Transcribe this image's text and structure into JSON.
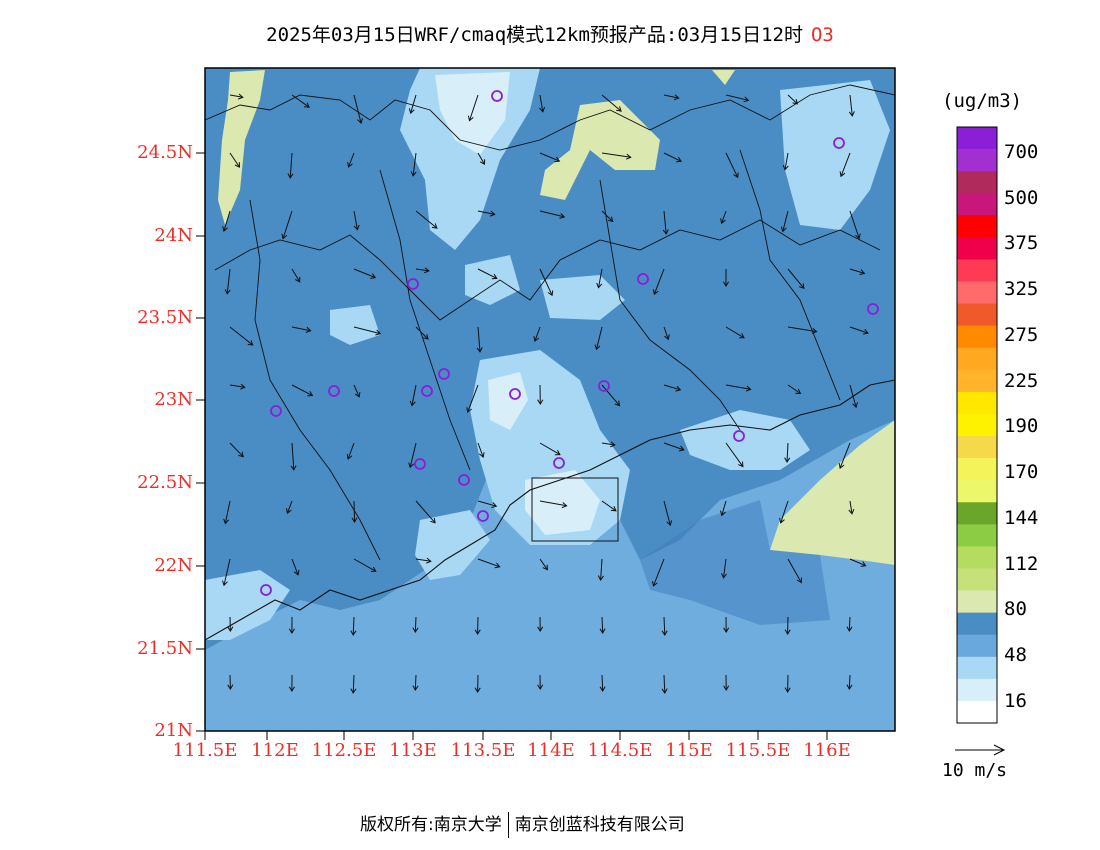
{
  "title": {
    "text": "2025年03月15日WRF/cmaq模式12km预报产品:03月15日12时",
    "species": "O3"
  },
  "lat_ticks": [
    "24.5N",
    "24N",
    "23.5N",
    "23N",
    "22.5N",
    "22N",
    "21.5N",
    "21N"
  ],
  "lon_ticks": [
    "111.5E",
    "112E",
    "112.5E",
    "113E",
    "113.5E",
    "114E",
    "114.5E",
    "115E",
    "115.5E",
    "116E"
  ],
  "colorbar": {
    "unit": "(ug/m3)",
    "labels": [
      "700",
      "500",
      "375",
      "325",
      "275",
      "225",
      "190",
      "170",
      "144",
      "112",
      "80",
      "48",
      "16"
    ],
    "colors": [
      "#8a1fd6",
      "#a22fd0",
      "#b02a5c",
      "#c8177a",
      "#ff0000",
      "#f0004a",
      "#ff3a55",
      "#ff6b6b",
      "#f05a2a",
      "#ff8a00",
      "#ffa820",
      "#ffb42c",
      "#ffe800",
      "#fff200",
      "#f6d94a",
      "#f4f45a",
      "#ecf86a",
      "#6aa62a",
      "#8ccc44",
      "#b4dc60",
      "#c6e07a",
      "#dbe8b0",
      "#4a8cc4",
      "#68a8dc",
      "#a8d8f4",
      "#d8effa",
      "#ffffff"
    ]
  },
  "fill_colors": {
    "ocean": "#6fadde",
    "mid": "#4a8cc4",
    "light": "#a8d8f4",
    "lighter": "#d8effa",
    "yellow": "#dbe8b0",
    "sea_band": "#3f80bf"
  },
  "wind_ref": {
    "label": "10  m/s"
  },
  "footer": {
    "left": "版权所有:南京大学",
    "right": "南京创蓝科技有限公司"
  }
}
